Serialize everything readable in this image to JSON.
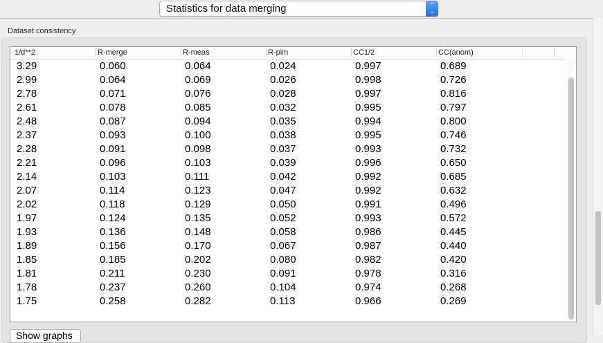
{
  "dropdown": {
    "selected": "Statistics for data merging"
  },
  "group": {
    "title": "Dataset consistency"
  },
  "table": {
    "columns": [
      "1/d**2",
      "R-merge",
      "R-meas",
      "R-pim",
      "CC1/2",
      "CC(anom)"
    ],
    "rows": [
      [
        "3.29",
        "0.060",
        "0.064",
        "0.024",
        "0.997",
        "0.689"
      ],
      [
        "2.99",
        "0.064",
        "0.069",
        "0.026",
        "0.998",
        "0.726"
      ],
      [
        "2.78",
        "0.071",
        "0.076",
        "0.028",
        "0.997",
        "0.816"
      ],
      [
        "2.61",
        "0.078",
        "0.085",
        "0.032",
        "0.995",
        "0.797"
      ],
      [
        "2.48",
        "0.087",
        "0.094",
        "0.035",
        "0.994",
        "0.800"
      ],
      [
        "2.37",
        "0.093",
        "0.100",
        "0.038",
        "0.995",
        "0.746"
      ],
      [
        "2.28",
        "0.091",
        "0.098",
        "0.037",
        "0.993",
        "0.732"
      ],
      [
        "2.21",
        "0.096",
        "0.103",
        "0.039",
        "0.996",
        "0.650"
      ],
      [
        "2.14",
        "0.103",
        "0.111",
        "0.042",
        "0.992",
        "0.685"
      ],
      [
        "2.07",
        "0.114",
        "0.123",
        "0.047",
        "0.992",
        "0.632"
      ],
      [
        "2.02",
        "0.118",
        "0.129",
        "0.050",
        "0.991",
        "0.496"
      ],
      [
        "1.97",
        "0.124",
        "0.135",
        "0.052",
        "0.993",
        "0.572"
      ],
      [
        "1.93",
        "0.136",
        "0.148",
        "0.058",
        "0.986",
        "0.445"
      ],
      [
        "1.89",
        "0.156",
        "0.170",
        "0.067",
        "0.987",
        "0.440"
      ],
      [
        "1.85",
        "0.185",
        "0.202",
        "0.080",
        "0.982",
        "0.420"
      ],
      [
        "1.81",
        "0.211",
        "0.230",
        "0.091",
        "0.978",
        "0.316"
      ],
      [
        "1.78",
        "0.237",
        "0.260",
        "0.104",
        "0.974",
        "0.268"
      ],
      [
        "1.75",
        "0.258",
        "0.282",
        "0.113",
        "0.966",
        "0.269"
      ]
    ]
  },
  "show_graphs_label": "Show graphs"
}
